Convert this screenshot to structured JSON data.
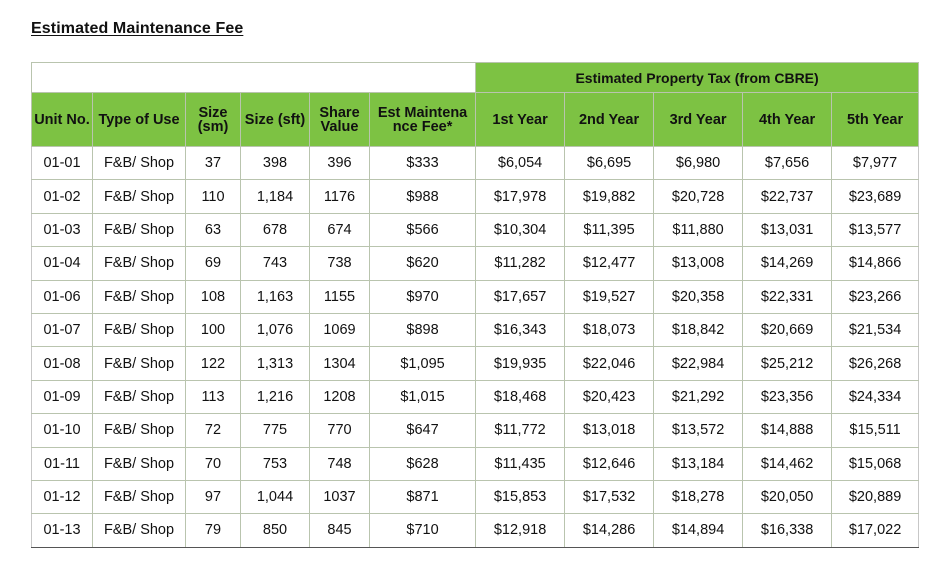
{
  "title": "Estimated Maintenance Fee",
  "group_header": "Estimated Property Tax (from CBRE)",
  "headers": {
    "unit_no": "Unit No.",
    "type_of_use": "Type of Use",
    "size_sm": "Size (sm)",
    "size_sft": "Size (sft)",
    "share_value": "Share Value",
    "est_fee": "Est Maintena nce Fee*",
    "y1": "1st Year",
    "y2": "2nd Year",
    "y3": "3rd Year",
    "y4": "4th Year",
    "y5": "5th Year"
  },
  "rows": [
    {
      "unit": "01-01",
      "type": "F&B/ Shop",
      "sm": "37",
      "sft": "398",
      "share": "396",
      "fee": "$333",
      "y1": "$6,054",
      "y2": "$6,695",
      "y3": "$6,980",
      "y4": "$7,656",
      "y5": "$7,977"
    },
    {
      "unit": "01-02",
      "type": "F&B/ Shop",
      "sm": "110",
      "sft": "1,184",
      "share": "1176",
      "fee": "$988",
      "y1": "$17,978",
      "y2": "$19,882",
      "y3": "$20,728",
      "y4": "$22,737",
      "y5": "$23,689"
    },
    {
      "unit": "01-03",
      "type": "F&B/ Shop",
      "sm": "63",
      "sft": "678",
      "share": "674",
      "fee": "$566",
      "y1": "$10,304",
      "y2": "$11,395",
      "y3": "$11,880",
      "y4": "$13,031",
      "y5": "$13,577"
    },
    {
      "unit": "01-04",
      "type": "F&B/ Shop",
      "sm": "69",
      "sft": "743",
      "share": "738",
      "fee": "$620",
      "y1": "$11,282",
      "y2": "$12,477",
      "y3": "$13,008",
      "y4": "$14,269",
      "y5": "$14,866"
    },
    {
      "unit": "01-06",
      "type": "F&B/ Shop",
      "sm": "108",
      "sft": "1,163",
      "share": "1155",
      "fee": "$970",
      "y1": "$17,657",
      "y2": "$19,527",
      "y3": "$20,358",
      "y4": "$22,331",
      "y5": "$23,266"
    },
    {
      "unit": "01-07",
      "type": "F&B/ Shop",
      "sm": "100",
      "sft": "1,076",
      "share": "1069",
      "fee": "$898",
      "y1": "$16,343",
      "y2": "$18,073",
      "y3": "$18,842",
      "y4": "$20,669",
      "y5": "$21,534"
    },
    {
      "unit": "01-08",
      "type": "F&B/ Shop",
      "sm": "122",
      "sft": "1,313",
      "share": "1304",
      "fee": "$1,095",
      "y1": "$19,935",
      "y2": "$22,046",
      "y3": "$22,984",
      "y4": "$25,212",
      "y5": "$26,268"
    },
    {
      "unit": "01-09",
      "type": "F&B/ Shop",
      "sm": "113",
      "sft": "1,216",
      "share": "1208",
      "fee": "$1,015",
      "y1": "$18,468",
      "y2": "$20,423",
      "y3": "$21,292",
      "y4": "$23,356",
      "y5": "$24,334"
    },
    {
      "unit": "01-10",
      "type": "F&B/ Shop",
      "sm": "72",
      "sft": "775",
      "share": "770",
      "fee": "$647",
      "y1": "$11,772",
      "y2": "$13,018",
      "y3": "$13,572",
      "y4": "$14,888",
      "y5": "$15,511"
    },
    {
      "unit": "01-11",
      "type": "F&B/ Shop",
      "sm": "70",
      "sft": "753",
      "share": "748",
      "fee": "$628",
      "y1": "$11,435",
      "y2": "$12,646",
      "y3": "$13,184",
      "y4": "$14,462",
      "y5": "$15,068"
    },
    {
      "unit": "01-12",
      "type": "F&B/ Shop",
      "sm": "97",
      "sft": "1,044",
      "share": "1037",
      "fee": "$871",
      "y1": "$15,853",
      "y2": "$17,532",
      "y3": "$18,278",
      "y4": "$20,050",
      "y5": "$20,889"
    },
    {
      "unit": "01-13",
      "type": "F&B/ Shop",
      "sm": "79",
      "sft": "850",
      "share": "845",
      "fee": "$710",
      "y1": "$12,918",
      "y2": "$14,286",
      "y3": "$14,894",
      "y4": "$16,338",
      "y5": "$17,022"
    }
  ],
  "colors": {
    "header_green": "#7dc243"
  }
}
